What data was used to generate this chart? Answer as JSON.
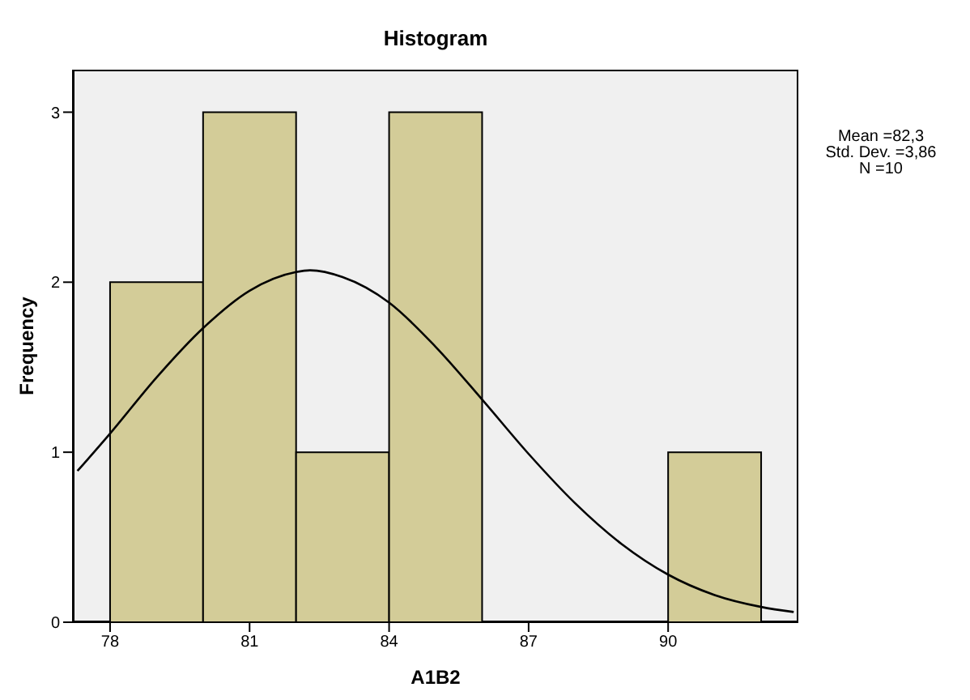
{
  "chart_data": {
    "type": "histogram",
    "title": "Histogram",
    "xlabel": "A1B2",
    "ylabel": "Frequency",
    "bins": [
      78,
      80,
      82,
      84,
      86,
      88,
      90,
      92
    ],
    "values": [
      2,
      3,
      1,
      3,
      0,
      0,
      1
    ],
    "color": "#d3cc98",
    "series": [
      {
        "type": "line",
        "color": "#000000",
        "x": [
          77.3,
          78,
          79,
          80,
          81,
          82,
          82.3,
          83,
          84,
          85,
          86,
          87,
          88,
          89,
          90,
          91,
          92,
          92.7
        ],
        "values": [
          0.89,
          1.11,
          1.44,
          1.73,
          1.95,
          2.06,
          2.07,
          2.03,
          1.88,
          1.62,
          1.31,
          0.99,
          0.7,
          0.46,
          0.28,
          0.16,
          0.09,
          0.06
        ]
      }
    ],
    "marker": "none",
    "xlim": [
      77.2,
      92.8
    ],
    "xticks": [
      78,
      81,
      84,
      87,
      90
    ],
    "ylim": [
      0,
      3.25
    ],
    "yticks": [
      0,
      1,
      2,
      3
    ],
    "annotations": [
      "Mean =82,3",
      "Std. Dev. =3,86",
      "N =10"
    ]
  }
}
